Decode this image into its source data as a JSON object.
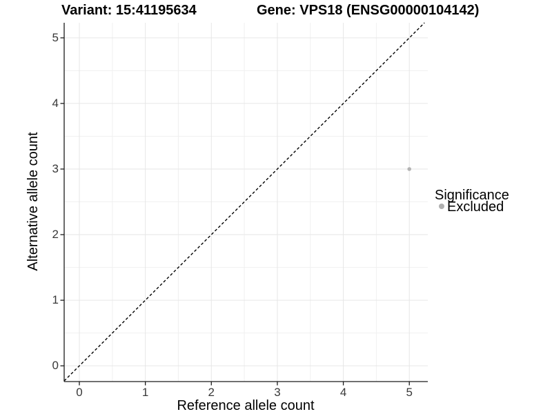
{
  "titles": {
    "variant": "Variant: 15:41195634",
    "gene": "Gene: VPS18 (ENSG00000104142)"
  },
  "axes": {
    "x_label": "Reference allele count",
    "y_label": "Alternative allele count"
  },
  "legend": {
    "title": "Significance",
    "items": [
      {
        "label": "Excluded",
        "color": "#b0b0b0"
      }
    ]
  },
  "chart_data": {
    "type": "scatter",
    "title": "Variant: 15:41195634",
    "subtitle": "Gene: VPS18 (ENSG00000104142)",
    "xlabel": "Reference allele count",
    "ylabel": "Alternative allele count",
    "xlim": [
      -0.23,
      5.28
    ],
    "ylim": [
      -0.24,
      5.23
    ],
    "x_ticks": [
      0,
      1,
      2,
      3,
      4,
      5
    ],
    "y_ticks": [
      0,
      1,
      2,
      3,
      4,
      5
    ],
    "grid": "major+minor",
    "grid_major_color": "#e6e6e6",
    "grid_minor_color": "#f0f0f0",
    "axis_color": "#1a1a1a",
    "points": [
      {
        "x": 5,
        "y": 3,
        "series": "Excluded",
        "color": "#b3b3b3",
        "radius": 2.8
      }
    ],
    "reference_line": {
      "equation": "y = x",
      "style": "dashed",
      "color": "#000000"
    },
    "legend": {
      "title": "Significance",
      "position": "right",
      "entries": [
        {
          "label": "Excluded",
          "color": "#b0b0b0"
        }
      ]
    }
  }
}
